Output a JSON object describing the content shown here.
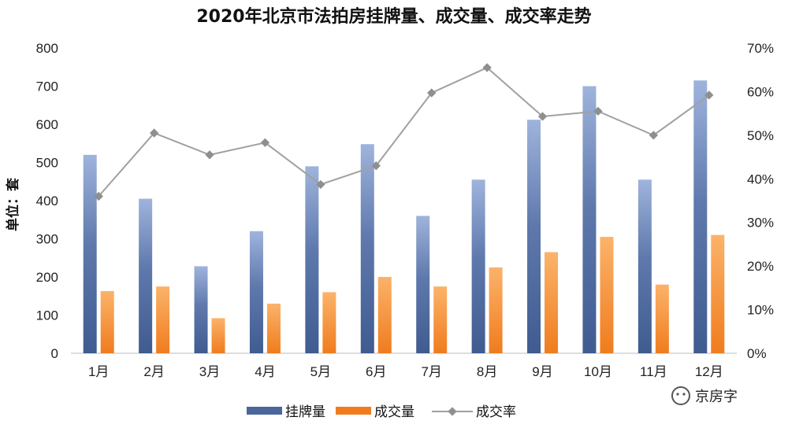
{
  "chart_data": {
    "type": "bar",
    "title": "2020年北京市法拍房挂牌量、成交量、成交率走势",
    "ylabel": "单位：套",
    "categories": [
      "1月",
      "2月",
      "3月",
      "4月",
      "5月",
      "6月",
      "7月",
      "8月",
      "9月",
      "10月",
      "11月",
      "12月"
    ],
    "ylim": [
      0,
      800
    ],
    "y_ticks": [
      "0",
      "100",
      "200",
      "300",
      "400",
      "500",
      "600",
      "700",
      "800"
    ],
    "y2lim": [
      0,
      0.7
    ],
    "y2_ticks": [
      "0%",
      "10%",
      "20%",
      "30%",
      "40%",
      "50%",
      "60%",
      "70%"
    ],
    "series": [
      {
        "name": "挂牌量",
        "type": "bar",
        "axis": "left",
        "color": "#4a669a",
        "values": [
          520,
          405,
          228,
          320,
          490,
          548,
          360,
          455,
          612,
          700,
          455,
          715
        ]
      },
      {
        "name": "成交量",
        "type": "bar",
        "axis": "left",
        "color": "#f07c1e",
        "values": [
          163,
          175,
          92,
          130,
          160,
          200,
          175,
          225,
          265,
          305,
          180,
          310
        ]
      },
      {
        "name": "成交率",
        "type": "line",
        "axis": "right",
        "color": "#a0a0a0",
        "values": [
          0.36,
          0.505,
          0.455,
          0.483,
          0.387,
          0.43,
          0.597,
          0.655,
          0.543,
          0.555,
          0.5,
          0.592
        ]
      }
    ],
    "grid": false,
    "legend": "bottom"
  },
  "watermark": {
    "text": "京房字"
  }
}
